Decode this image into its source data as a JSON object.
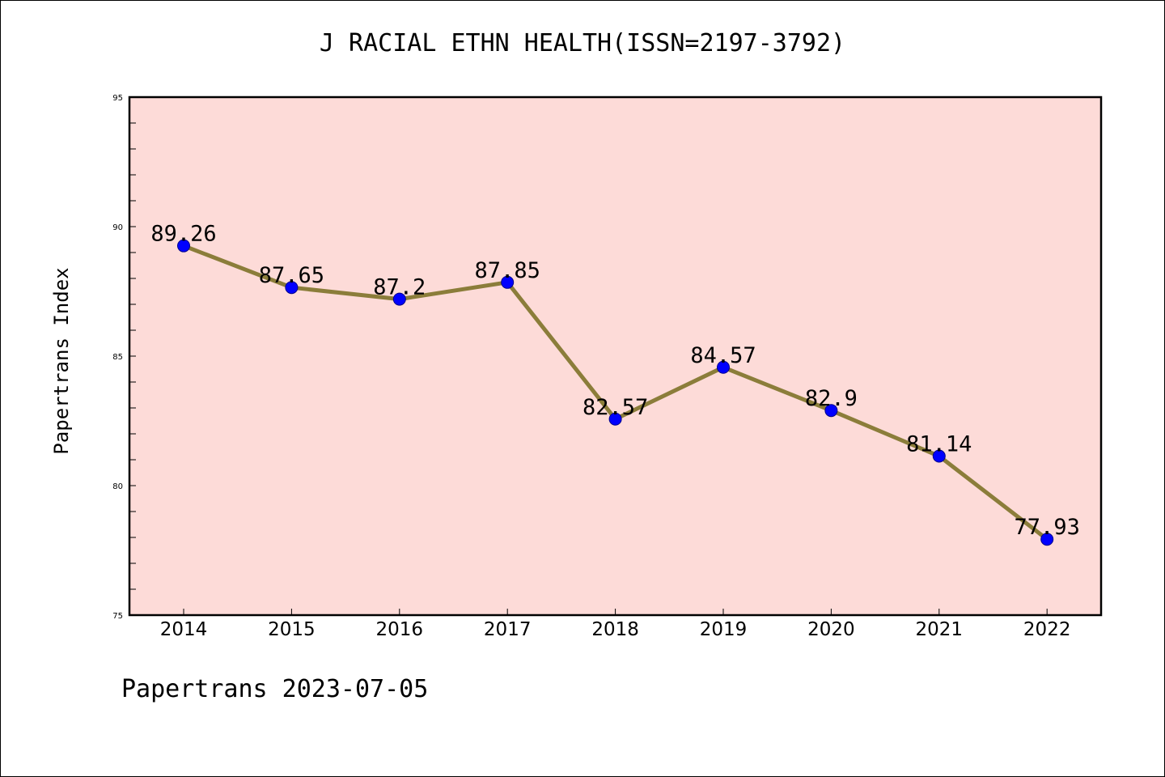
{
  "chart_data": {
    "type": "line",
    "title": "J RACIAL ETHN HEALTH(ISSN=2197-3792)",
    "ylabel": "Papertrans Index",
    "xlabel": "",
    "categories": [
      "2014",
      "2015",
      "2016",
      "2017",
      "2018",
      "2019",
      "2020",
      "2021",
      "2022"
    ],
    "series": [
      {
        "values": [
          89.26,
          87.65,
          87.2,
          87.85,
          82.57,
          84.57,
          82.9,
          81.14,
          77.93
        ],
        "value_labels": [
          "89.26",
          "87.65",
          "87.2",
          "87.85",
          "82.57",
          "84.57",
          "82.9",
          "81.14",
          "77.93"
        ]
      }
    ],
    "ylim": [
      75,
      95
    ],
    "yticks": [
      "75",
      "80",
      "85",
      "90",
      "95"
    ],
    "grid": false,
    "legend": "none"
  },
  "footer": "Papertrans 2023-07-05",
  "colors": {
    "plot_background": "#fddbd8",
    "line": "#8b7d3a",
    "marker": "#0000ff",
    "axis": "#000000"
  }
}
